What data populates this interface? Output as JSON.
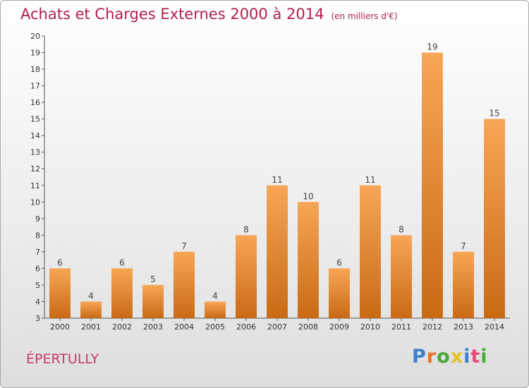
{
  "chart_data": {
    "type": "bar",
    "title": "Achats et Charges Externes 2000 à 2014",
    "subtitle": "(en milliers d'€)",
    "categories": [
      "2000",
      "2001",
      "2002",
      "2003",
      "2004",
      "2005",
      "2006",
      "2007",
      "2008",
      "2009",
      "2010",
      "2011",
      "2012",
      "2013",
      "2014"
    ],
    "values": [
      6,
      4,
      6,
      5,
      7,
      4,
      8,
      11,
      10,
      6,
      11,
      8,
      19,
      7,
      15
    ],
    "ylim": [
      3,
      20
    ],
    "yticks": [
      3,
      4,
      5,
      6,
      7,
      8,
      9,
      10,
      11,
      12,
      13,
      14,
      15,
      16,
      17,
      18,
      19,
      20
    ],
    "grid": false,
    "bar_color": "#f0903a",
    "bar_color_dark": "#c96a14"
  },
  "commune": "ÉPERTULLY",
  "logo": {
    "letters": [
      "P",
      "r",
      "o",
      "x",
      "i",
      "t",
      "i"
    ],
    "colors": [
      "#3a7fd0",
      "#e8732a",
      "#4aa83a",
      "#e8c020",
      "#3a7fd0",
      "#e84a7a",
      "#4aa83a"
    ]
  }
}
